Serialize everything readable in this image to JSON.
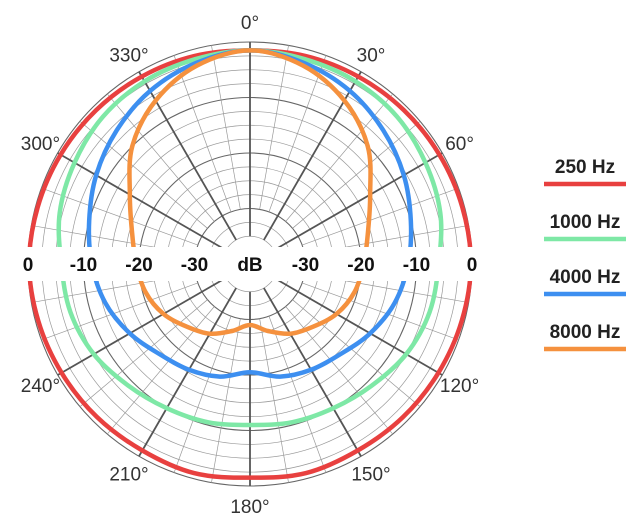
{
  "chart_data": {
    "type": "polar-line",
    "unit_label": "dB",
    "radial_range": [
      -40,
      0
    ],
    "radial_tick_labels": [
      "0",
      "-10",
      "-20",
      "-30"
    ],
    "angle_tick_labels": [
      "0°",
      "30°",
      "60°",
      "120°",
      "150°",
      "180°",
      "210°",
      "240°",
      "300°",
      "330°"
    ],
    "angle_ticks_deg": [
      0,
      30,
      60,
      120,
      150,
      180,
      210,
      240,
      300,
      330
    ],
    "grid": true,
    "legend_position": "right",
    "angles_deg": [
      0,
      15,
      30,
      45,
      60,
      75,
      90,
      105,
      120,
      135,
      150,
      165,
      180,
      195,
      210,
      225,
      240,
      255,
      270,
      285,
      300,
      315,
      330,
      345
    ],
    "series": [
      {
        "name": "250 Hz",
        "color": "#e8403f",
        "values": [
          -1.5,
          -1.2,
          -1.0,
          -0.8,
          -0.6,
          -0.4,
          -0.2,
          -0.5,
          -0.8,
          -1.0,
          -1.2,
          -1.0,
          -1.5,
          -1.0,
          -1.2,
          -1.0,
          -0.8,
          -0.5,
          -0.2,
          -0.4,
          -0.6,
          -0.8,
          -1.0,
          -1.2
        ]
      },
      {
        "name": "1000 Hz",
        "color": "#7ee8a6",
        "values": [
          -1.5,
          -1.8,
          -2.0,
          -2.5,
          -3.5,
          -4.5,
          -6.0,
          -6.5,
          -7.5,
          -9.0,
          -10.0,
          -10.5,
          -11.0,
          -10.5,
          -10.0,
          -9.0,
          -7.5,
          -6.5,
          -6.0,
          -4.5,
          -3.5,
          -2.5,
          -2.0,
          -1.8
        ]
      },
      {
        "name": "4000 Hz",
        "color": "#3d8ff0",
        "values": [
          -1.5,
          -2.5,
          -4.0,
          -6.0,
          -8.0,
          -10.0,
          -11.5,
          -13.0,
          -15.0,
          -17.0,
          -18.0,
          -19.0,
          -20.5,
          -19.0,
          -18.0,
          -17.0,
          -15.0,
          -13.0,
          -11.5,
          -10.0,
          -8.0,
          -6.0,
          -4.0,
          -2.5
        ]
      },
      {
        "name": "8000 Hz",
        "color": "#f5913e",
        "values": [
          -1.5,
          -3.0,
          -6.0,
          -10.0,
          -15.0,
          -18.0,
          -19.5,
          -20.5,
          -22.0,
          -24.0,
          -25.5,
          -27.5,
          -29.0,
          -27.5,
          -25.5,
          -24.0,
          -22.0,
          -20.5,
          -19.5,
          -18.0,
          -15.0,
          -10.0,
          -6.0,
          -3.0
        ]
      }
    ]
  }
}
